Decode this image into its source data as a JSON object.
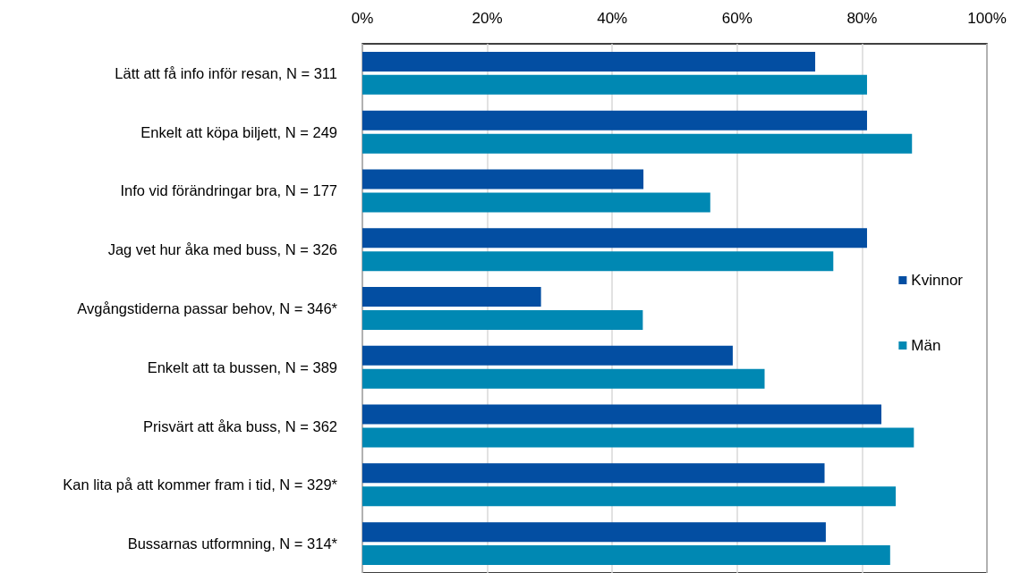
{
  "chart_data": {
    "type": "bar",
    "orientation": "horizontal",
    "categories": [
      "Lätt att få info inför resan, N = 311",
      "Enkelt att köpa biljett, N = 249",
      "Info vid förändringar bra, N = 177",
      "Jag vet hur åka med buss, N = 326",
      "Avgångstiderna passar behov, N = 346*",
      "Enkelt att ta bussen, N = 389",
      "Prisvärt att åka buss, N = 362",
      "Kan lita på att kommer fram i tid, N = 329*",
      "Bussarnas utformning, N = 314*"
    ],
    "series": [
      {
        "name": "Kvinnor",
        "color": "#034ea2",
        "values": [
          72.5,
          80.8,
          45.0,
          80.8,
          28.6,
          59.3,
          83.1,
          74.0,
          74.2
        ]
      },
      {
        "name": "Män",
        "color": "#0088b3",
        "values": [
          80.8,
          88.0,
          55.7,
          75.4,
          44.9,
          64.4,
          88.3,
          85.4,
          84.5
        ]
      }
    ],
    "xlim": [
      0,
      100
    ],
    "xticks": [
      {
        "value": 0,
        "label": "0%"
      },
      {
        "value": 20,
        "label": "20%"
      },
      {
        "value": 40,
        "label": "40%"
      },
      {
        "value": 60,
        "label": "60%"
      },
      {
        "value": 80,
        "label": "80%"
      },
      {
        "value": 100,
        "label": "100%"
      }
    ],
    "grid": "x",
    "legend": "right"
  }
}
